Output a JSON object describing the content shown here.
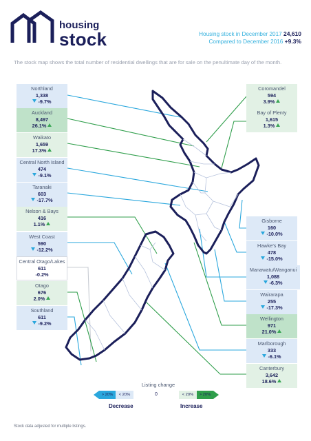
{
  "logo": {
    "line1": "housing",
    "line2": "stock"
  },
  "header": {
    "line1_text": "Housing stock in December 2017",
    "line1_value": "24,610",
    "line2_text": "Compared to December 2016",
    "line2_value": "+9.3%"
  },
  "intro": "The stock map shows the total number of residential dwellings that are for sale on the penultimate day of the month.",
  "regions": {
    "northland": {
      "name": "Northland",
      "value": "1,338",
      "change": "-9.7%",
      "trend": "down"
    },
    "auckland": {
      "name": "Auckland",
      "value": "8,497",
      "change": "26.1%",
      "trend": "up"
    },
    "waikato": {
      "name": "Waikato",
      "value": "1,659",
      "change": "17.3%",
      "trend": "up"
    },
    "central_north_island": {
      "name": "Central North Island",
      "value": "474",
      "change": "-9.1%",
      "trend": "down"
    },
    "taranaki": {
      "name": "Taranaki",
      "value": "603",
      "change": "-17.7%",
      "trend": "down"
    },
    "nelson_bays": {
      "name": "Nelson & Bays",
      "value": "416",
      "change": "1.1%",
      "trend": "up"
    },
    "west_coast": {
      "name": "West Coast",
      "value": "590",
      "change": "-12.2%",
      "trend": "down"
    },
    "central_otago": {
      "name": "Central Otago/Lakes",
      "value": "611",
      "change": "-0.2%",
      "trend": "neutral"
    },
    "otago": {
      "name": "Otago",
      "value": "676",
      "change": "2.0%",
      "trend": "up"
    },
    "southland": {
      "name": "Southland",
      "value": "611",
      "change": "-9.2%",
      "trend": "down"
    },
    "coromandel": {
      "name": "Coromandel",
      "value": "594",
      "change": "3.9%",
      "trend": "up"
    },
    "bay_of_plenty": {
      "name": "Bay of Plenty",
      "value": "1,615",
      "change": "1.3%",
      "trend": "up"
    },
    "gisborne": {
      "name": "Gisborne",
      "value": "160",
      "change": "-10.0%",
      "trend": "down"
    },
    "hawkes_bay": {
      "name": "Hawke's Bay",
      "value": "478",
      "change": "-15.0%",
      "trend": "down"
    },
    "manawatu": {
      "name": "Manawatu/Wanganui",
      "value": "1,088",
      "change": "-6.3%",
      "trend": "down"
    },
    "wairarapa": {
      "name": "Wairarapa",
      "value": "255",
      "change": "-17.3%",
      "trend": "down"
    },
    "wellington": {
      "name": "Wellington",
      "value": "971",
      "change": "21.0%",
      "trend": "up"
    },
    "marlborough": {
      "name": "Marlborough",
      "value": "333",
      "change": "-6.1%",
      "trend": "down"
    },
    "canterbury": {
      "name": "Canterbury",
      "value": "3,642",
      "change": "18.6%",
      "trend": "up"
    }
  },
  "legend": {
    "title": "Listing change",
    "dec_big": "> 20%",
    "dec_small": "< 20%",
    "zero": "0",
    "inc_small": "< 20%",
    "inc_big": "> 20%",
    "decrease": "Decrease",
    "increase": "Increase"
  },
  "footnote": "Stock data adjusted for multiple listings.",
  "colors": {
    "navy": "#1b1f5a",
    "accent_blue": "#35b1de",
    "decrease_bg": "#dde9f7",
    "increase_bg": "#e2f1e5",
    "strong_increase_bg": "#bfe2c9",
    "decrease_line": "#2aa7dd",
    "increase_line": "#2f9e4b"
  }
}
